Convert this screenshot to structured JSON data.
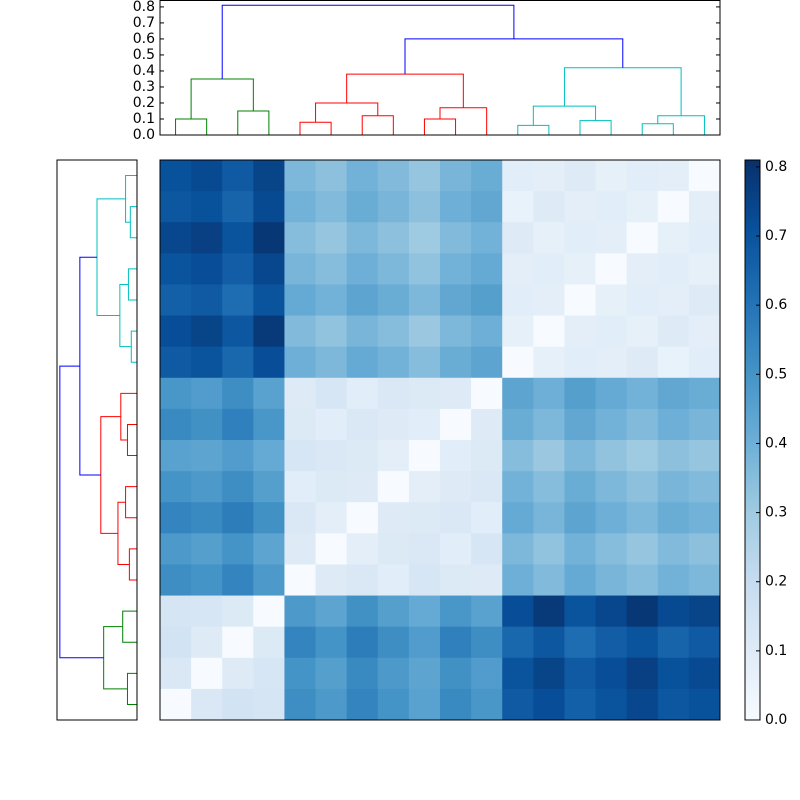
{
  "chart_data": {
    "type": "clustered_heatmap",
    "colormap": "Blues",
    "values": [
      [
        0.71,
        0.73,
        0.68,
        0.75,
        0.37,
        0.34,
        0.39,
        0.36,
        0.32,
        0.38,
        0.41,
        0.09,
        0.08,
        0.1,
        0.07,
        0.09,
        0.08,
        0
      ],
      [
        0.69,
        0.71,
        0.65,
        0.73,
        0.39,
        0.36,
        0.41,
        0.38,
        0.34,
        0.4,
        0.43,
        0.06,
        0.1,
        0.08,
        0.09,
        0.07,
        0,
        0.08
      ],
      [
        0.74,
        0.76,
        0.7,
        0.79,
        0.35,
        0.32,
        0.37,
        0.34,
        0.3,
        0.36,
        0.39,
        0.1,
        0.07,
        0.09,
        0.08,
        0,
        0.07,
        0.09
      ],
      [
        0.7,
        0.72,
        0.67,
        0.74,
        0.38,
        0.35,
        0.4,
        0.37,
        0.33,
        0.39,
        0.42,
        0.08,
        0.09,
        0.07,
        0,
        0.08,
        0.09,
        0.07
      ],
      [
        0.66,
        0.68,
        0.62,
        0.7,
        0.42,
        0.39,
        0.44,
        0.41,
        0.37,
        0.43,
        0.46,
        0.09,
        0.08,
        0,
        0.07,
        0.09,
        0.08,
        0.1
      ],
      [
        0.72,
        0.75,
        0.69,
        0.78,
        0.36,
        0.33,
        0.38,
        0.35,
        0.31,
        0.37,
        0.4,
        0.07,
        0,
        0.08,
        0.09,
        0.07,
        0.1,
        0.08
      ],
      [
        0.68,
        0.7,
        0.64,
        0.72,
        0.4,
        0.37,
        0.42,
        0.39,
        0.35,
        0.41,
        0.44,
        0,
        0.07,
        0.09,
        0.08,
        0.1,
        0.06,
        0.09
      ],
      [
        0.49,
        0.47,
        0.52,
        0.45,
        0.1,
        0.13,
        0.09,
        0.12,
        0.11,
        0.1,
        0,
        0.44,
        0.4,
        0.46,
        0.42,
        0.39,
        0.43,
        0.41
      ],
      [
        0.53,
        0.51,
        0.56,
        0.49,
        0.11,
        0.09,
        0.12,
        0.1,
        0.09,
        0,
        0.1,
        0.41,
        0.37,
        0.43,
        0.39,
        0.36,
        0.4,
        0.38
      ],
      [
        0.45,
        0.44,
        0.47,
        0.42,
        0.13,
        0.12,
        0.11,
        0.08,
        0,
        0.09,
        0.11,
        0.35,
        0.31,
        0.37,
        0.33,
        0.3,
        0.34,
        0.32
      ],
      [
        0.5,
        0.48,
        0.52,
        0.46,
        0.09,
        0.11,
        0.1,
        0,
        0.08,
        0.1,
        0.12,
        0.39,
        0.35,
        0.41,
        0.37,
        0.34,
        0.38,
        0.36
      ],
      [
        0.55,
        0.53,
        0.57,
        0.51,
        0.12,
        0.08,
        0,
        0.1,
        0.11,
        0.12,
        0.09,
        0.42,
        0.38,
        0.44,
        0.4,
        0.37,
        0.41,
        0.39
      ],
      [
        0.48,
        0.46,
        0.5,
        0.44,
        0.1,
        0,
        0.08,
        0.11,
        0.12,
        0.09,
        0.13,
        0.37,
        0.33,
        0.39,
        0.35,
        0.32,
        0.36,
        0.34
      ],
      [
        0.52,
        0.5,
        0.55,
        0.48,
        0,
        0.1,
        0.12,
        0.09,
        0.13,
        0.11,
        0.1,
        0.4,
        0.36,
        0.42,
        0.38,
        0.35,
        0.39,
        0.37
      ],
      [
        0.14,
        0.13,
        0.11,
        0,
        0.48,
        0.44,
        0.51,
        0.46,
        0.42,
        0.49,
        0.45,
        0.72,
        0.78,
        0.7,
        0.74,
        0.79,
        0.73,
        0.75
      ],
      [
        0.15,
        0.1,
        0,
        0.11,
        0.55,
        0.5,
        0.57,
        0.52,
        0.47,
        0.56,
        0.52,
        0.64,
        0.69,
        0.62,
        0.67,
        0.7,
        0.65,
        0.68
      ],
      [
        0.12,
        0,
        0.1,
        0.13,
        0.5,
        0.46,
        0.53,
        0.48,
        0.44,
        0.51,
        0.47,
        0.7,
        0.75,
        0.68,
        0.72,
        0.76,
        0.71,
        0.73
      ],
      [
        0,
        0.12,
        0.15,
        0.14,
        0.52,
        0.48,
        0.55,
        0.5,
        0.45,
        0.53,
        0.49,
        0.68,
        0.72,
        0.66,
        0.7,
        0.74,
        0.69,
        0.71
      ]
    ],
    "vlim": [
      0,
      0.81
    ],
    "colorbar_ticks": [
      {
        "value": 0,
        "label": "0.0"
      },
      0.1,
      0.2,
      0.3,
      0.4,
      0.5,
      0.6,
      0.7,
      0.8
    ],
    "dendrogram": {
      "ylim": [
        0,
        0.84
      ],
      "yticks": [
        {
          "value": 0,
          "label": "0.0"
        },
        0.1,
        0.2,
        0.3,
        0.4,
        0.5,
        0.6,
        0.7,
        0.8
      ],
      "links": [
        {
          "x": [
            0,
            0,
            1,
            1
          ],
          "y": [
            0,
            0.1,
            0.1,
            0
          ],
          "color": "#008000"
        },
        {
          "x": [
            2,
            2,
            3,
            3
          ],
          "y": [
            0,
            0.15,
            0.15,
            0
          ],
          "color": "#008000"
        },
        {
          "x": [
            0.5,
            0.5,
            2.5,
            2.5
          ],
          "y": [
            0.1,
            0.35,
            0.35,
            0.15
          ],
          "color": "#008000"
        },
        {
          "x": [
            4,
            4,
            5,
            5
          ],
          "y": [
            0,
            0.08,
            0.08,
            0
          ],
          "color": "#ff0000"
        },
        {
          "x": [
            6,
            6,
            7,
            7
          ],
          "y": [
            0,
            0.12,
            0.12,
            0
          ],
          "color": "#ff0000"
        },
        {
          "x": [
            4.5,
            4.5,
            6.5,
            6.5
          ],
          "y": [
            0.08,
            0.2,
            0.2,
            0.12
          ],
          "color": "#ff0000"
        },
        {
          "x": [
            8,
            8,
            9,
            9
          ],
          "y": [
            0,
            0.1,
            0.1,
            0
          ],
          "color": "#ff0000"
        },
        {
          "x": [
            8.5,
            8.5,
            10,
            10
          ],
          "y": [
            0.1,
            0.17,
            0.17,
            0
          ],
          "color": "#ff0000"
        },
        {
          "x": [
            5.5,
            5.5,
            9.25,
            9.25
          ],
          "y": [
            0.2,
            0.38,
            0.38,
            0.17
          ],
          "color": "#ff0000"
        },
        {
          "x": [
            11,
            11,
            12,
            12
          ],
          "y": [
            0,
            0.06,
            0.06,
            0
          ],
          "color": "#00bfbf"
        },
        {
          "x": [
            13,
            13,
            14,
            14
          ],
          "y": [
            0,
            0.09,
            0.09,
            0
          ],
          "color": "#00bfbf"
        },
        {
          "x": [
            11.5,
            11.5,
            13.5,
            13.5
          ],
          "y": [
            0.06,
            0.18,
            0.18,
            0.09
          ],
          "color": "#00bfbf"
        },
        {
          "x": [
            15,
            15,
            16,
            16
          ],
          "y": [
            0,
            0.07,
            0.07,
            0
          ],
          "color": "#00bfbf"
        },
        {
          "x": [
            15.5,
            15.5,
            17,
            17
          ],
          "y": [
            0.07,
            0.12,
            0.12,
            0
          ],
          "color": "#00bfbf"
        },
        {
          "x": [
            12.5,
            12.5,
            16.25,
            16.25
          ],
          "y": [
            0.18,
            0.42,
            0.42,
            0.12
          ],
          "color": "#00bfbf"
        },
        {
          "x": [
            7.375,
            7.375,
            14.375,
            14.375
          ],
          "y": [
            0.38,
            0.6,
            0.6,
            0.42
          ],
          "color": "#0000ff"
        },
        {
          "x": [
            1.5,
            1.5,
            10.875,
            10.875
          ],
          "y": [
            0.35,
            0.81,
            0.81,
            0.6
          ],
          "color": "#0000ff"
        }
      ]
    }
  }
}
